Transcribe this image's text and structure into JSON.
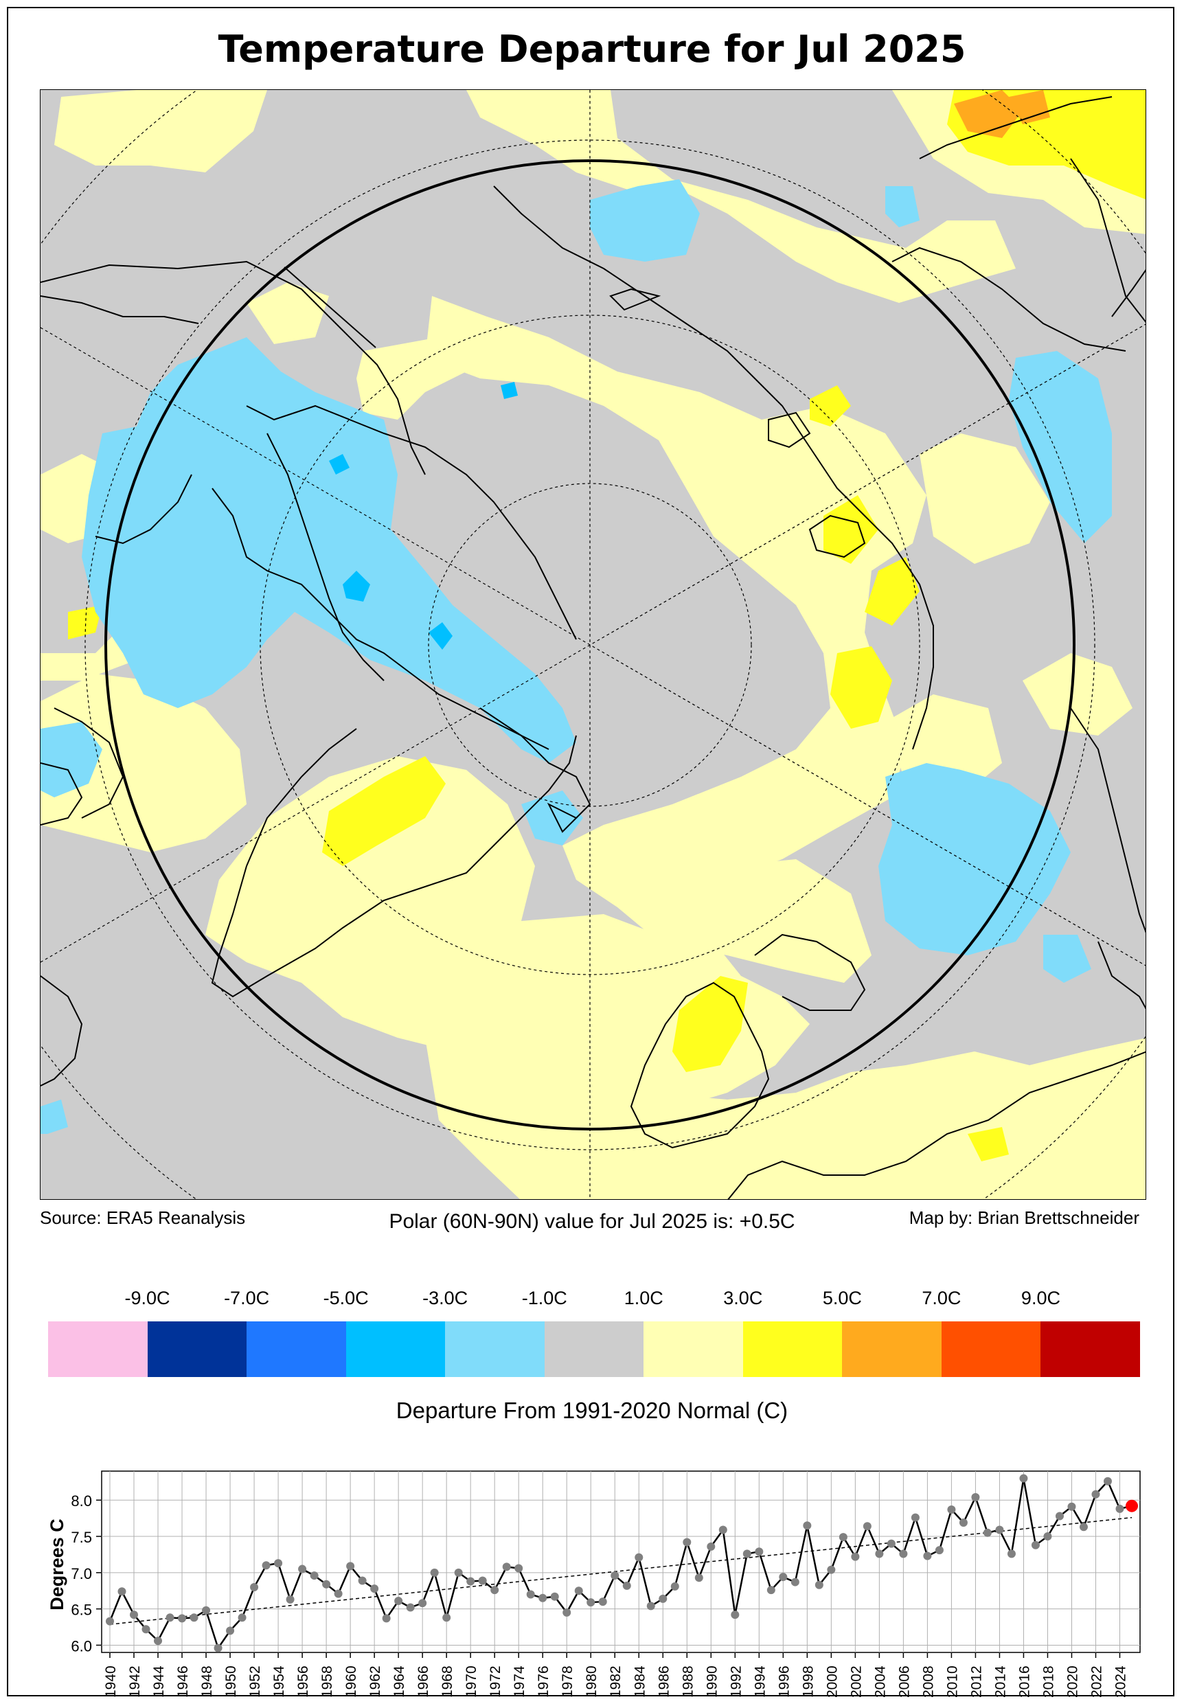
{
  "title": "Temperature Departure for Jul 2025",
  "captions": {
    "source": "Source: ERA5 Reanalysis",
    "polar_value": "Polar (60N-90N) value for Jul 2025 is: +0.5C",
    "credit": "Map by: Brian Brettschneider"
  },
  "legend": {
    "tick_labels": [
      "-9.0C",
      "-7.0C",
      "-5.0C",
      "-3.0C",
      "-1.0C",
      "1.0C",
      "3.0C",
      "5.0C",
      "7.0C",
      "9.0C"
    ],
    "colors": [
      "#fbc0e6",
      "#003399",
      "#1f78ff",
      "#00bfff",
      "#80dcfa",
      "#cdcdcd",
      "#ffffb4",
      "#ffff1e",
      "#ffaa1e",
      "#ff5000",
      "#c00000"
    ],
    "title": "Departure From 1991-2020 Normal (C)"
  },
  "map_colors": {
    "neutral": "#cdcdcd",
    "warm_1_3": "#ffffb4",
    "warm_3_5": "#ffff1e",
    "warm_5_7": "#ffaa1e",
    "cool_1_3": "#80dcfa",
    "cool_3_5": "#00bfff"
  },
  "chart_data": {
    "type": "line",
    "ylabel": "Degrees C",
    "xlabel": "",
    "ylim": [
      5.9,
      8.4
    ],
    "yticks": [
      "6.0",
      "6.5",
      "7.0",
      "7.5",
      "8.0"
    ],
    "xticks": [
      "1940",
      "1942",
      "1944",
      "1946",
      "1948",
      "1950",
      "1952",
      "1954",
      "1956",
      "1958",
      "1960",
      "1962",
      "1964",
      "1966",
      "1968",
      "1970",
      "1972",
      "1974",
      "1976",
      "1978",
      "1980",
      "1982",
      "1984",
      "1986",
      "1988",
      "1990",
      "1992",
      "1994",
      "1996",
      "1998",
      "2000",
      "2002",
      "2004",
      "2006",
      "2008",
      "2010",
      "2012",
      "2014",
      "2016",
      "2018",
      "2020",
      "2022",
      "2024"
    ],
    "grid": true,
    "trendline": "dashed",
    "highlight": {
      "year": 2025,
      "value": 7.92,
      "color": "#ff0000"
    },
    "x": [
      1940,
      1941,
      1942,
      1943,
      1944,
      1945,
      1946,
      1947,
      1948,
      1949,
      1950,
      1951,
      1952,
      1953,
      1954,
      1955,
      1956,
      1957,
      1958,
      1959,
      1960,
      1961,
      1962,
      1963,
      1964,
      1965,
      1966,
      1967,
      1968,
      1969,
      1970,
      1971,
      1972,
      1973,
      1974,
      1975,
      1976,
      1977,
      1978,
      1979,
      1980,
      1981,
      1982,
      1983,
      1984,
      1985,
      1986,
      1987,
      1988,
      1989,
      1990,
      1991,
      1992,
      1993,
      1994,
      1995,
      1996,
      1997,
      1998,
      1999,
      2000,
      2001,
      2002,
      2003,
      2004,
      2005,
      2006,
      2007,
      2008,
      2009,
      2010,
      2011,
      2012,
      2013,
      2014,
      2015,
      2016,
      2017,
      2018,
      2019,
      2020,
      2021,
      2022,
      2023,
      2024,
      2025
    ],
    "values": [
      6.33,
      6.74,
      6.42,
      6.22,
      6.06,
      6.38,
      6.37,
      6.38,
      6.48,
      5.96,
      6.2,
      6.38,
      6.8,
      7.1,
      7.13,
      6.63,
      7.05,
      6.96,
      6.84,
      6.71,
      7.09,
      6.89,
      6.78,
      6.37,
      6.61,
      6.52,
      6.58,
      7.0,
      6.38,
      7.0,
      6.88,
      6.89,
      6.76,
      7.08,
      7.06,
      6.7,
      6.65,
      6.67,
      6.45,
      6.75,
      6.59,
      6.6,
      6.96,
      6.82,
      7.21,
      6.54,
      6.64,
      6.81,
      7.42,
      6.93,
      7.36,
      7.59,
      6.42,
      7.26,
      7.29,
      6.76,
      6.94,
      6.87,
      7.65,
      6.83,
      7.04,
      7.49,
      7.22,
      7.64,
      7.26,
      7.4,
      7.26,
      7.76,
      7.23,
      7.31,
      7.87,
      7.69,
      8.04,
      7.55,
      7.59,
      7.26,
      8.3,
      7.38,
      7.5,
      7.78,
      7.91,
      7.63,
      8.08,
      8.26,
      7.88,
      7.92
    ]
  }
}
